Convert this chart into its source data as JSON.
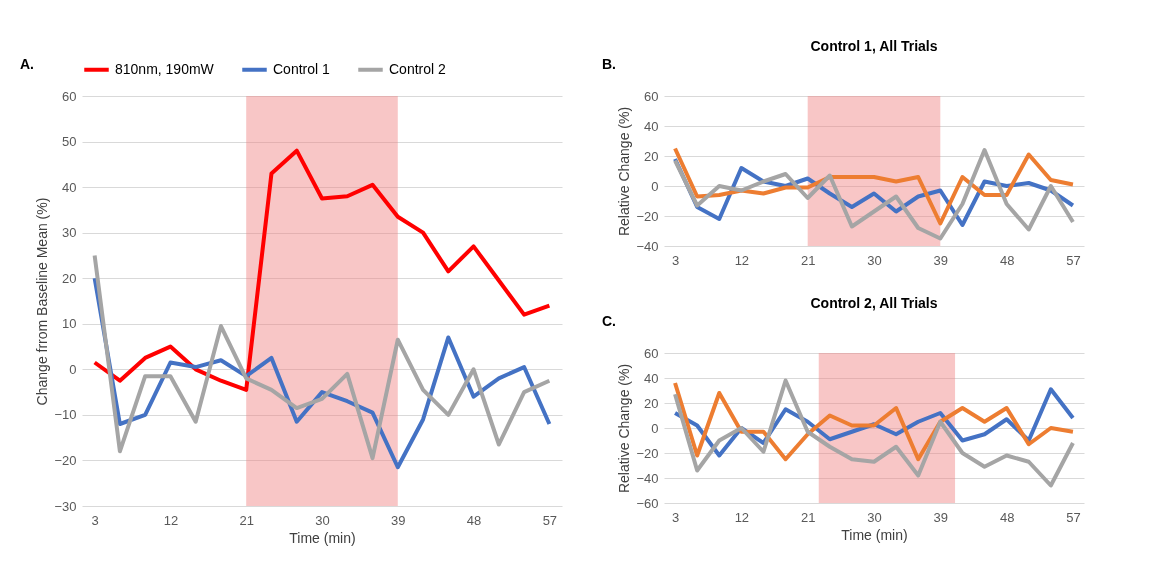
{
  "chart_data": [
    {
      "type": "line",
      "xlabel": "Time (min)",
      "ylabel": "Change frrom Baseline Mean (%)",
      "annotations": [
        "A."
      ],
      "x": [
        3,
        6,
        9,
        12,
        15,
        18,
        21,
        24,
        27,
        30,
        33,
        36,
        39,
        42,
        45,
        48,
        51,
        54,
        57
      ],
      "xlim": [
        1.5,
        58.5
      ],
      "xticks": [
        3,
        12,
        21,
        30,
        39,
        48,
        57
      ],
      "ylim": [
        -30,
        60
      ],
      "yticks": [
        -30,
        -20,
        -10,
        0,
        10,
        20,
        30,
        40,
        50,
        60
      ],
      "grid": "y",
      "legend": "top",
      "bands": [
        {
          "axis": "x",
          "from": 21,
          "to": 39,
          "color": "#f08080"
        }
      ],
      "series": [
        {
          "name": "810nm, 190mW",
          "color": "#ff0000",
          "values": [
            1.5,
            -2.5,
            2.5,
            5,
            0,
            -2.5,
            -4.5,
            43,
            48,
            37.5,
            38,
            40.5,
            33.5,
            30,
            21.5,
            27,
            19.5,
            12,
            14
          ]
        },
        {
          "name": "Control 1",
          "color": "#4472c4",
          "values": [
            20,
            -12,
            -10,
            1.5,
            0.5,
            2,
            -1.5,
            2.5,
            -11.5,
            -5,
            -7,
            -9.5,
            -21.5,
            -11,
            7,
            -6,
            -2,
            0.5,
            -12
          ]
        },
        {
          "name": "Control 2",
          "color": "#a5a5a5",
          "values": [
            25,
            -18,
            -1.5,
            -1.5,
            -11.5,
            9.5,
            -2,
            -4.5,
            -8.5,
            -6.5,
            -1,
            -19.5,
            6.5,
            -4.5,
            -10,
            0,
            -16.5,
            -5,
            -2.5
          ]
        }
      ]
    },
    {
      "type": "line",
      "title": "Control 1, All Trials",
      "ylabel": "Relative Change (%)",
      "annotations": [
        "B."
      ],
      "x": [
        3,
        6,
        9,
        12,
        15,
        18,
        21,
        24,
        27,
        30,
        33,
        36,
        39,
        42,
        45,
        48,
        51,
        54,
        57
      ],
      "xlim": [
        1.5,
        58.5
      ],
      "xticks": [
        3,
        12,
        21,
        30,
        39,
        48,
        57
      ],
      "ylim": [
        -40,
        60
      ],
      "yticks": [
        -40,
        -20,
        0,
        20,
        40,
        60
      ],
      "grid": "y",
      "bands": [
        {
          "axis": "x",
          "from": 21,
          "to": 39,
          "color": "#f08080"
        }
      ],
      "series": [
        {
          "color": "#4472c4",
          "values": [
            18,
            -14,
            -22,
            12,
            3,
            0,
            5,
            -5,
            -14,
            -5,
            -17,
            -7,
            -3,
            -26,
            3,
            0,
            2,
            -3,
            -13
          ]
        },
        {
          "color": "#ed7d31",
          "values": [
            25,
            -7,
            -6,
            -3,
            -5,
            -1,
            -1,
            6,
            6,
            6,
            3,
            6,
            -25,
            6,
            -6,
            -6,
            21,
            4,
            1
          ]
        },
        {
          "color": "#a5a5a5",
          "values": [
            17,
            -13,
            0,
            -3,
            3,
            8,
            -8,
            7,
            -27,
            -17,
            -7,
            -28,
            -35,
            -12,
            24,
            -12,
            -29,
            0,
            -24
          ]
        }
      ]
    },
    {
      "type": "line",
      "title": "Control 2, All Trials",
      "xlabel": "Time (min)",
      "ylabel": "Relative Change (%)",
      "annotations": [
        "C."
      ],
      "x": [
        3,
        6,
        9,
        12,
        15,
        18,
        21,
        24,
        27,
        30,
        33,
        36,
        39,
        42,
        45,
        48,
        51,
        54,
        57
      ],
      "xlim": [
        1.5,
        58.5
      ],
      "xticks": [
        3,
        12,
        21,
        30,
        39,
        48,
        57
      ],
      "ylim": [
        -60,
        60
      ],
      "yticks": [
        -60,
        -40,
        -20,
        0,
        20,
        40,
        60
      ],
      "grid": "y",
      "bands": [
        {
          "axis": "x",
          "from": 22.5,
          "to": 41,
          "color": "#f08080"
        }
      ],
      "series": [
        {
          "color": "#4472c4",
          "values": [
            12,
            2,
            -22,
            0,
            -12,
            15,
            5,
            -9,
            -3,
            3,
            -5,
            5,
            12,
            -10,
            -5,
            7,
            -10,
            31,
            8
          ]
        },
        {
          "color": "#ed7d31",
          "values": [
            36,
            -22,
            28,
            -3,
            -3,
            -25,
            -5,
            10,
            2,
            2,
            16,
            -25,
            5,
            16,
            5,
            16,
            -13,
            0,
            -3
          ]
        },
        {
          "color": "#a5a5a5",
          "values": [
            27,
            -34,
            -10,
            0,
            -19,
            38,
            -3,
            -15,
            -25,
            -27,
            -15,
            -38,
            5,
            -20,
            -31,
            -22,
            -27,
            -46,
            -12
          ]
        }
      ]
    }
  ]
}
